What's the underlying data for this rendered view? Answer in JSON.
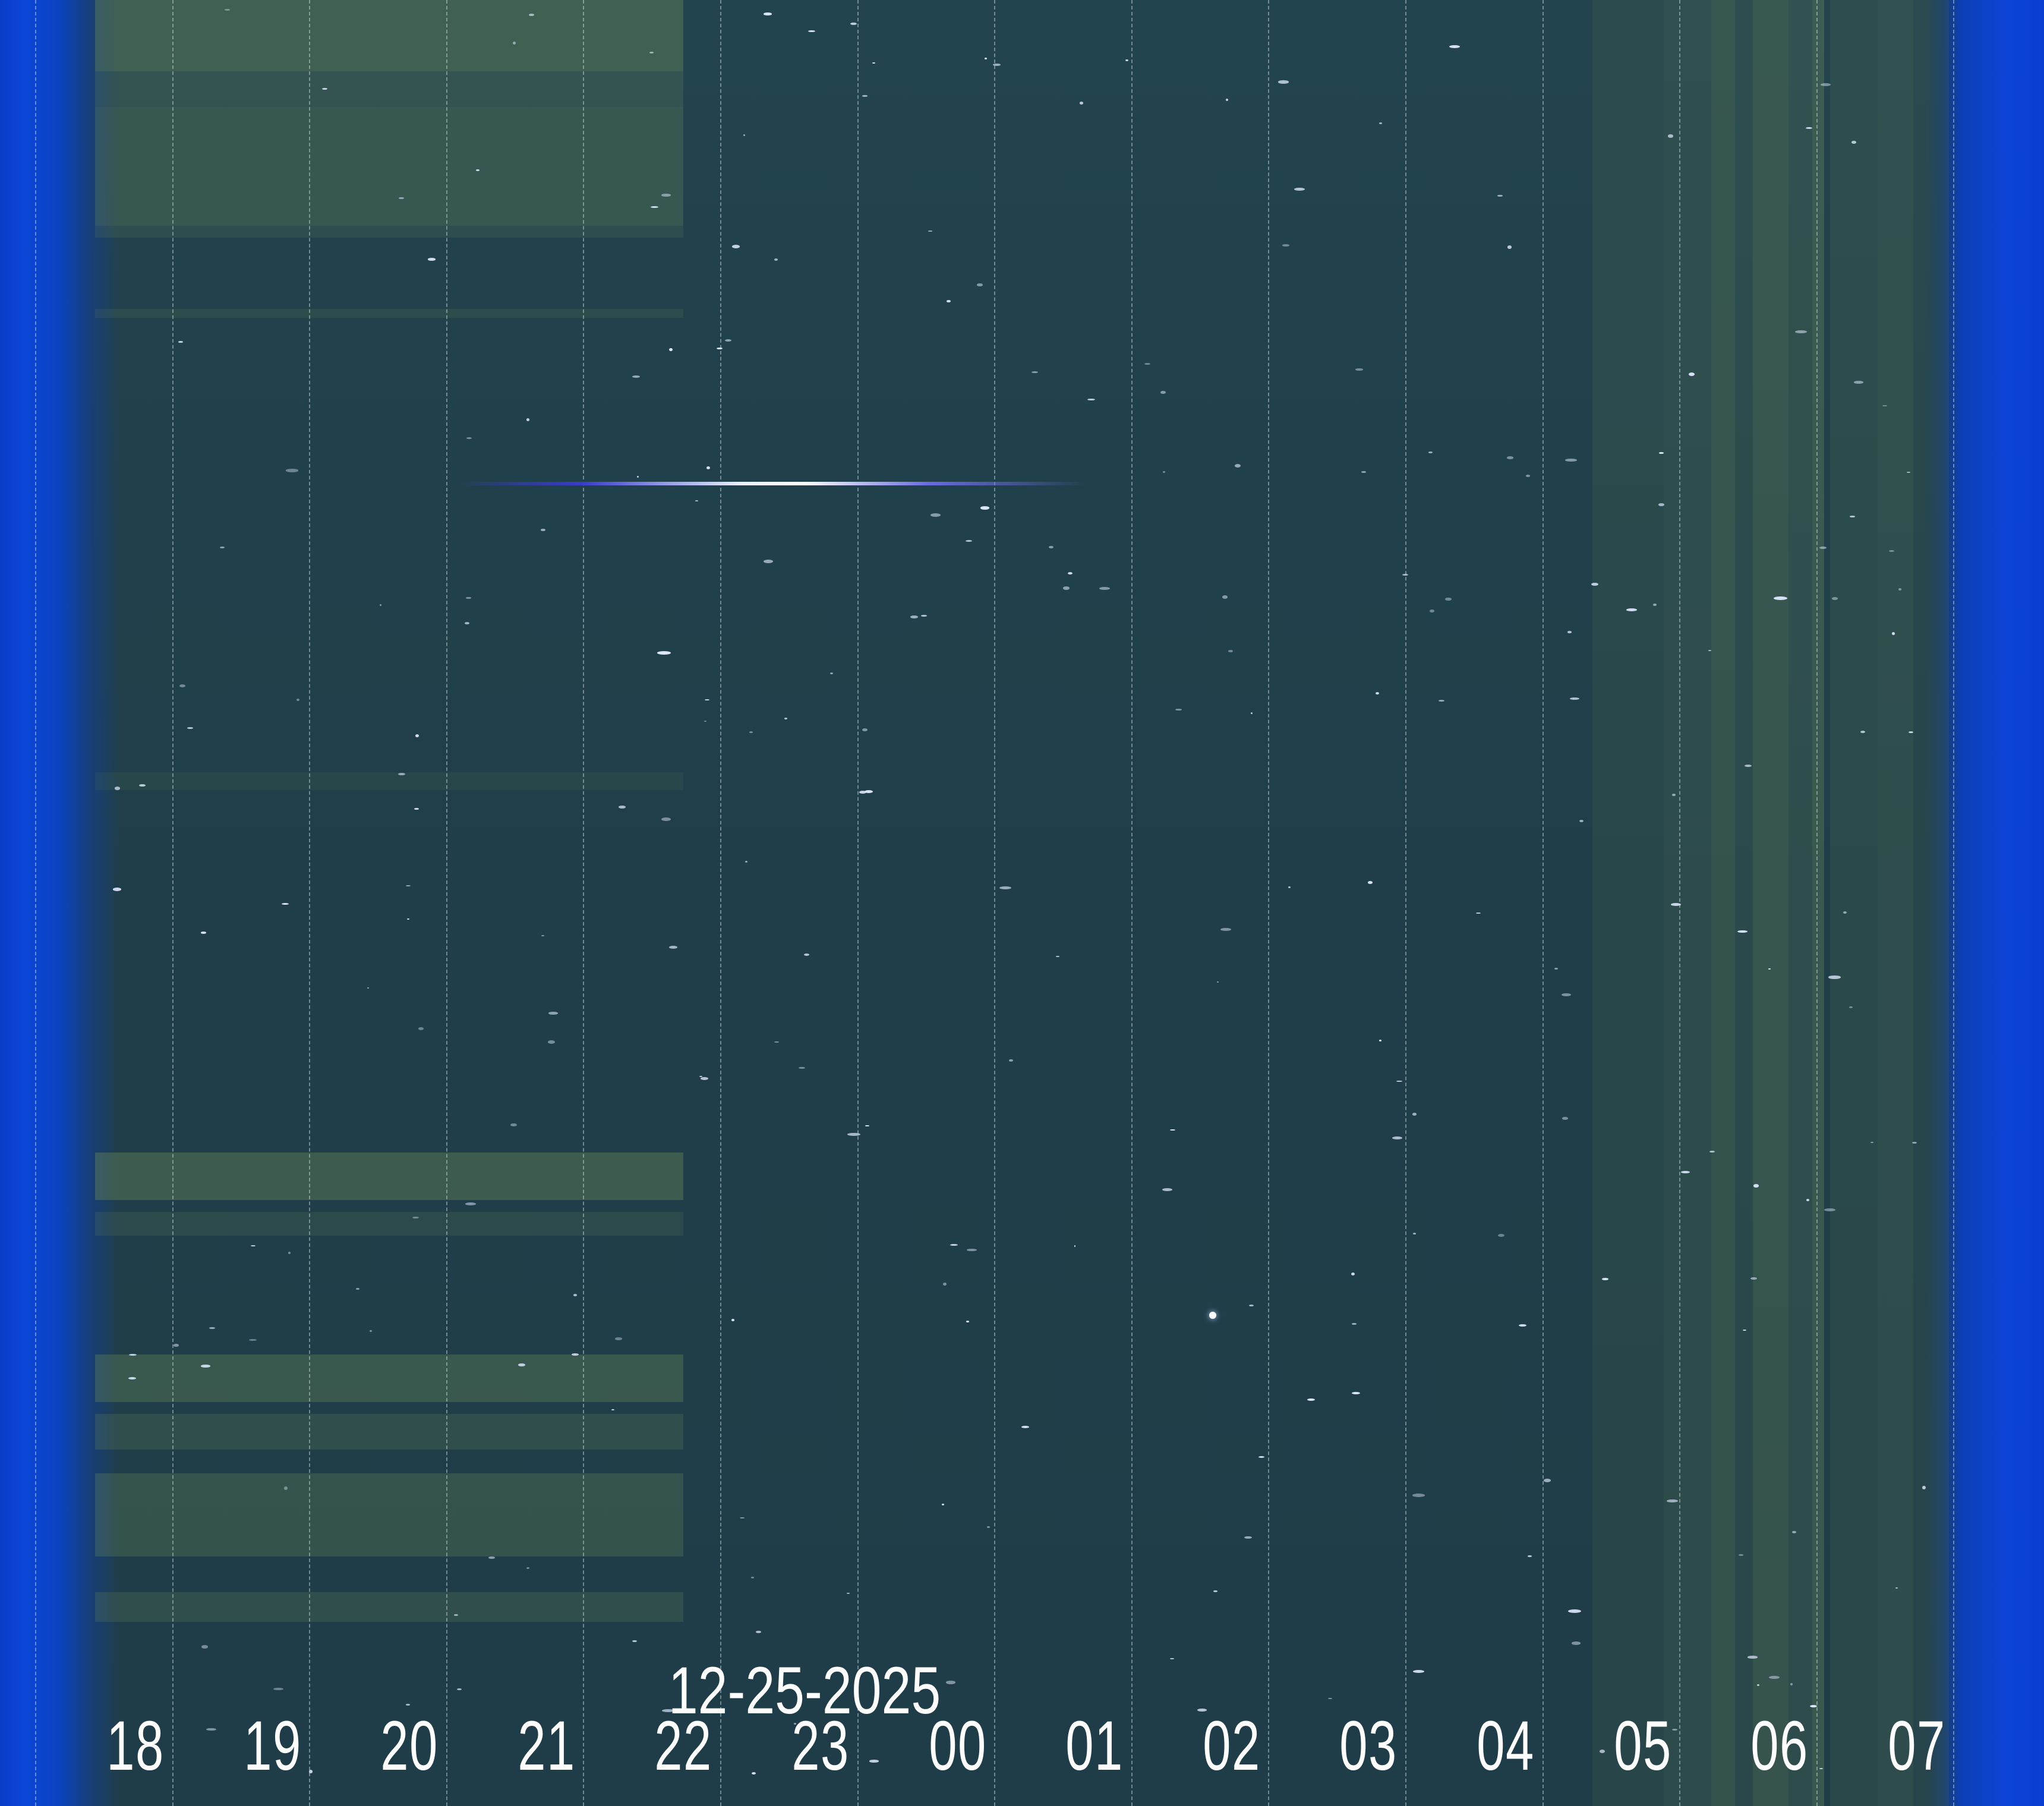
{
  "image": {
    "type": "keogram",
    "date_label": "12-25-2025",
    "hour_labels": [
      "18",
      "19",
      "20",
      "21",
      "22",
      "23",
      "00",
      "01",
      "02",
      "03",
      "04",
      "05",
      "06",
      "07"
    ],
    "colors": {
      "sky": "#1e3c47",
      "edge": "#0a3cc8",
      "label": "#ffffff"
    }
  }
}
